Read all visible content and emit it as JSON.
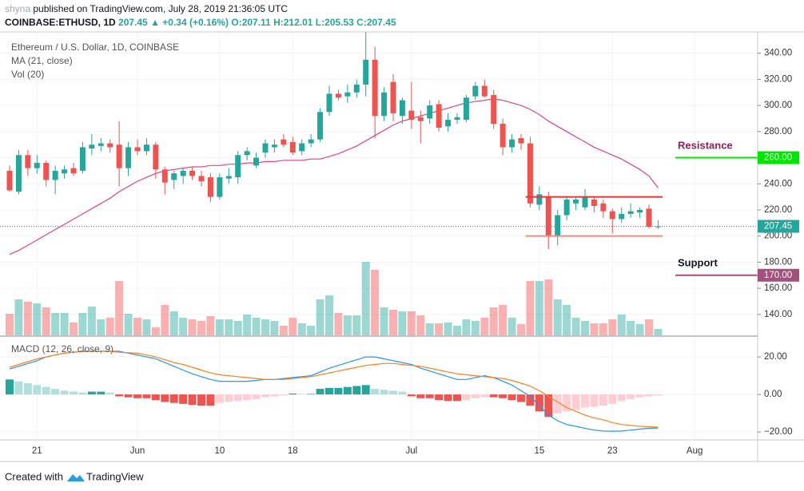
{
  "header": {
    "publisher": "shyna",
    "published": "published on TradingView.com, July 28, 2019 21:36:05 UTC",
    "symbol": "COINBASE:ETHUSD, 1D",
    "last": 207.45,
    "change": "▲ +0.34 (+0.16%)",
    "ohlc": [
      "O:207.11",
      "H:212.01",
      "L:205.53",
      "C:207.45"
    ]
  },
  "chart_data": {
    "type": "candlestick",
    "title": "Ethereum / U.S. Dollar, 1D, COINBASE",
    "ma_label": "MA (21, close)",
    "vol_label": "Vol (20)",
    "macd_label": "MACD (12, 26, close, 9)",
    "up_color": "#26a69a",
    "down_color": "#ef5350",
    "ma_color": "#e5457a",
    "macd_color": "#2196f3",
    "signal_color": "#ff7f1f",
    "open": [
      250,
      234,
      262,
      252,
      256,
      243,
      248,
      252,
      250,
      267,
      269,
      271,
      270,
      252,
      268,
      265,
      270,
      251,
      243,
      246,
      250,
      246,
      245,
      230,
      244,
      245,
      262,
      254,
      264,
      268,
      274,
      272,
      265,
      271,
      274,
      295,
      309,
      307,
      310,
      316,
      335,
      292,
      318,
      292,
      296,
      291,
      290,
      301,
      284,
      289,
      289,
      307,
      315,
      308,
      286,
      268,
      275,
      271,
      224,
      230,
      200,
      216,
      225,
      222,
      228,
      225,
      219,
      213,
      217,
      218,
      221,
      207.11
    ],
    "high": [
      254,
      266,
      266,
      262,
      258,
      254,
      254,
      256,
      272,
      278,
      275,
      274,
      288,
      272,
      274,
      275,
      272,
      253,
      250,
      252,
      253,
      250,
      248,
      248,
      252,
      265,
      268,
      264,
      274,
      274,
      278,
      276,
      274,
      278,
      298,
      315,
      312,
      316,
      320,
      356,
      345,
      314,
      324,
      306,
      318,
      296,
      304,
      304,
      294,
      294,
      308,
      318,
      320,
      312,
      290,
      278,
      278,
      276,
      238,
      234,
      220,
      230,
      230,
      236,
      230,
      228,
      221,
      222,
      225,
      222,
      224,
      212.01
    ],
    "low": [
      234,
      232,
      246,
      248,
      238,
      232,
      244,
      246,
      248,
      262,
      265,
      264,
      238,
      246,
      262,
      262,
      244,
      232,
      236,
      240,
      243,
      238,
      226,
      228,
      240,
      240,
      258,
      252,
      260,
      264,
      268,
      262,
      262,
      268,
      272,
      292,
      304,
      302,
      306,
      307,
      275,
      288,
      288,
      286,
      282,
      271,
      286,
      280,
      280,
      286,
      287,
      304,
      306,
      282,
      262,
      264,
      266,
      222,
      220,
      190,
      193,
      212,
      220,
      220,
      218,
      214,
      202,
      210,
      214,
      214,
      206,
      205.53
    ],
    "close": [
      235,
      262,
      252,
      256,
      243,
      250,
      251,
      248,
      268,
      270,
      271,
      268,
      252,
      268,
      265,
      270,
      251,
      241,
      248,
      250,
      246,
      242,
      230,
      245,
      246,
      262,
      265,
      260,
      271,
      270,
      270,
      264,
      271,
      274,
      295,
      309,
      306,
      310,
      316,
      335,
      292,
      310,
      294,
      304,
      289,
      288,
      300,
      283,
      289,
      291,
      306,
      315,
      307,
      286,
      268,
      274,
      271,
      225,
      232,
      200,
      216,
      228,
      228,
      230,
      223,
      219,
      213,
      217,
      219,
      220,
      207,
      207.45
    ],
    "volume": [
      27,
      45,
      42,
      40,
      35,
      28,
      28,
      16,
      28,
      36,
      20,
      22,
      68,
      27,
      22,
      20,
      10,
      38,
      30,
      22,
      20,
      18,
      24,
      20,
      20,
      18,
      26,
      22,
      20,
      18,
      12,
      22,
      15,
      12,
      45,
      50,
      28,
      25,
      25,
      92,
      82,
      35,
      32,
      30,
      30,
      25,
      15,
      15,
      16,
      12,
      20,
      18,
      22,
      35,
      38,
      22,
      14,
      68,
      68,
      70,
      45,
      38,
      22,
      18,
      15,
      15,
      20,
      26,
      18,
      14,
      20,
      8
    ],
    "vlim": [
      0,
      100
    ],
    "ma": [
      186,
      189,
      193,
      197,
      201,
      205,
      209,
      213,
      217,
      221,
      225,
      229,
      234,
      238,
      242,
      245,
      248,
      250,
      251,
      252,
      253,
      253,
      254,
      254,
      255,
      255,
      256,
      256,
      257,
      257,
      258,
      258,
      258,
      259,
      259,
      261,
      263,
      266,
      269,
      273,
      277,
      281,
      285,
      288,
      290,
      292,
      294,
      296,
      298,
      300,
      302,
      303,
      304,
      305,
      304,
      302,
      300,
      297,
      293,
      288,
      284,
      280,
      276,
      272,
      268,
      265,
      262,
      259,
      255,
      251,
      246,
      237
    ],
    "xlim": [
      -1.05,
      81.9
    ],
    "xticks": [
      {
        "value": 3,
        "label": "21"
      },
      {
        "value": 14,
        "label": "Jun"
      },
      {
        "value": 23,
        "label": "10"
      },
      {
        "value": 31,
        "label": "18"
      },
      {
        "value": 44,
        "label": "Jul"
      },
      {
        "value": 58,
        "label": "15"
      },
      {
        "value": 66,
        "label": "23"
      },
      {
        "value": 75,
        "label": "Aug"
      }
    ],
    "ylim": [
      124,
      356.3
    ],
    "yticks": [
      {
        "value": 140,
        "label": "140.00"
      },
      {
        "value": 160,
        "label": "160.00"
      },
      {
        "value": 180,
        "label": "180.00"
      },
      {
        "value": 200,
        "label": "200.00"
      },
      {
        "value": 220,
        "label": "220.00"
      },
      {
        "value": 240,
        "label": "240.00"
      },
      {
        "value": 260,
        "label": "260.00"
      },
      {
        "value": 280,
        "label": "280.00"
      },
      {
        "value": 300,
        "label": "300.00"
      },
      {
        "value": 320,
        "label": "320.00"
      },
      {
        "value": 340,
        "label": "340.00"
      }
    ],
    "macd": {
      "ylim": [
        -23.8,
        29.4
      ],
      "yticks": [
        {
          "value": 20,
          "label": "20.00"
        },
        {
          "value": 0,
          "label": "0.00"
        },
        {
          "value": -20,
          "label": "−20.00"
        }
      ],
      "line": [
        13.6,
        15,
        16.5,
        18,
        20,
        21,
        22,
        22.5,
        23,
        23,
        23,
        23,
        23,
        22,
        21,
        20,
        19,
        17,
        15,
        13,
        11,
        9.5,
        8,
        7,
        7,
        7,
        7,
        7.5,
        8,
        8,
        8.5,
        9,
        9.5,
        10,
        12,
        14,
        15.5,
        17,
        18.5,
        20,
        20,
        19,
        18,
        17,
        16,
        14,
        12.5,
        11,
        9.5,
        8,
        8,
        9,
        10,
        9,
        7,
        5,
        2,
        -1,
        -6,
        -11,
        -14,
        -16,
        -17,
        -18,
        -19,
        -19.5,
        -19.6,
        -19.5,
        -19,
        -18.5,
        -18,
        -17.9
      ],
      "signal": [
        14.5,
        16,
        17.5,
        19,
        20,
        21,
        22,
        22.5,
        23,
        23,
        23,
        23,
        22.5,
        22.2,
        22,
        21,
        20,
        18.5,
        17,
        16,
        14.5,
        13,
        11.5,
        10.5,
        10,
        9.5,
        9,
        8.5,
        8,
        8,
        8,
        8.5,
        9,
        9.5,
        10.5,
        11.5,
        12.5,
        13.5,
        14.5,
        15.5,
        16,
        16.5,
        16.5,
        16,
        15.5,
        15,
        14,
        13,
        12,
        11,
        10.5,
        10,
        9.5,
        9,
        8.5,
        7.5,
        6,
        4.5,
        2,
        -1,
        -4,
        -7,
        -9,
        -11,
        -12.5,
        -13.5,
        -15,
        -16,
        -16.5,
        -17,
        -17.2,
        -17.4
      ],
      "hist": [
        8,
        7,
        6,
        5,
        4,
        3,
        2,
        1.5,
        1,
        1.5,
        1.5,
        1,
        -1,
        -1.5,
        -2,
        -2,
        -3,
        -4,
        -4.5,
        -5,
        -5.5,
        -6,
        -6,
        -4.5,
        -4,
        -3.5,
        -3,
        -2.5,
        -1.5,
        -1,
        -0.5,
        0.5,
        0.3,
        0.3,
        3,
        3.5,
        3.5,
        4,
        4.5,
        5,
        3,
        2.5,
        2,
        1.5,
        -1,
        -2,
        -2,
        -3,
        -3.5,
        -3.5,
        -3,
        -2,
        -1.5,
        -1.5,
        -2,
        -3,
        -4,
        -6,
        -9,
        -12,
        -10,
        -9,
        -8,
        -7,
        -6.5,
        -6,
        -5,
        -3.5,
        -2.5,
        -1.5,
        -1,
        -0.5
      ]
    },
    "levels": [
      {
        "value": 230,
        "from": 56.5,
        "to": 71.5,
        "color": "#e53935"
      },
      {
        "value": 200,
        "from": 56.5,
        "to": 71.5,
        "color": "#f28b82"
      }
    ],
    "price_labels": [
      {
        "value": 260,
        "label": "260.00",
        "color": "#00e600",
        "style": "level"
      },
      {
        "value": 170,
        "label": "170.00",
        "color": "#a0527a",
        "style": "level"
      },
      {
        "value": 207.45,
        "label": "207.45",
        "color": "#26a69a",
        "style": "last"
      }
    ],
    "annotations": [
      {
        "text": "Resistance",
        "color": "#8e2457"
      },
      {
        "text": "Support",
        "color": "#131722"
      }
    ]
  },
  "footer": {
    "created": "Created with",
    "brand": "TradingView"
  }
}
